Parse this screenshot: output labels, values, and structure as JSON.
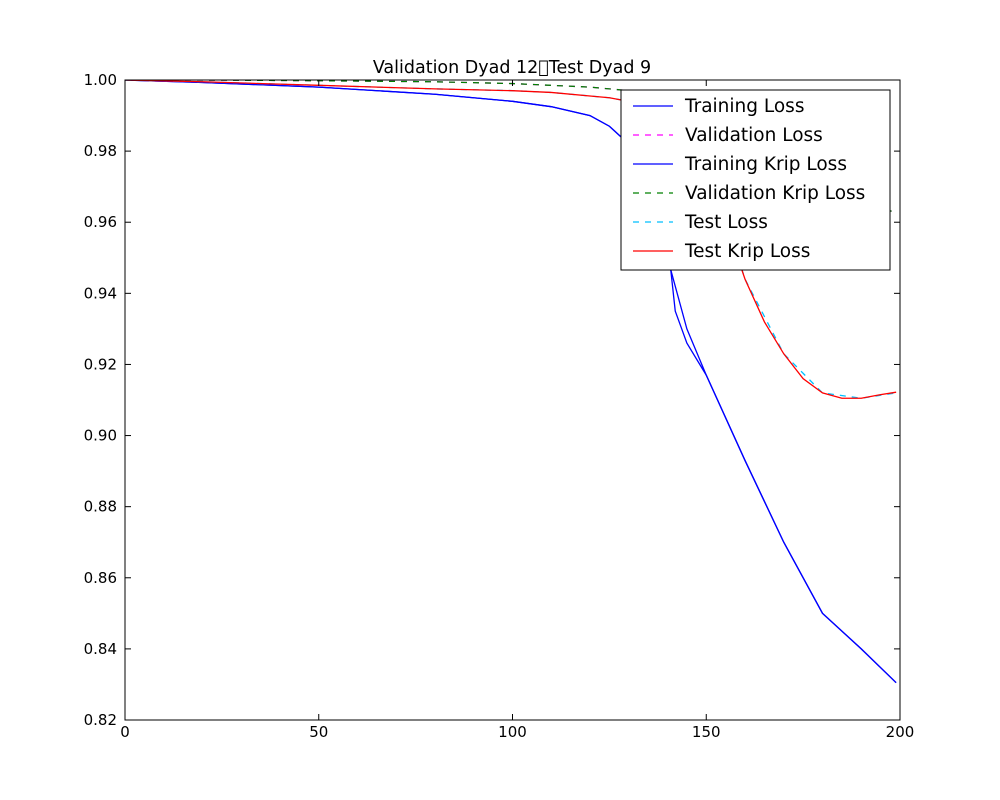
{
  "chart_data": {
    "type": "line",
    "title": "Validation Dyad 12\u0000Test Dyad 9",
    "xlabel": "",
    "ylabel": "",
    "xlim": [
      0,
      200
    ],
    "ylim": [
      0.82,
      1.0
    ],
    "xticks": [
      0,
      50,
      100,
      150,
      200
    ],
    "xtick_labels": [
      "0",
      "50",
      "100",
      "150",
      "200"
    ],
    "yticks": [
      0.82,
      0.84,
      0.86,
      0.88,
      0.9,
      0.92,
      0.94,
      0.96,
      0.98,
      1.0
    ],
    "ytick_labels": [
      "0.82",
      "0.84",
      "0.86",
      "0.88",
      "0.90",
      "0.92",
      "0.94",
      "0.96",
      "0.98",
      "1.00"
    ],
    "grid": false,
    "legend_position": "top-right",
    "series": [
      {
        "name": "Training Loss",
        "color": "#0000ff",
        "dash": "solid",
        "x": [
          0,
          20,
          50,
          80,
          100,
          110,
          120,
          125,
          130,
          135,
          140,
          145,
          150,
          160,
          170,
          180,
          190,
          199
        ],
        "y": [
          1.0,
          0.9993,
          0.998,
          0.996,
          0.994,
          0.9925,
          0.99,
          0.987,
          0.982,
          0.972,
          0.95,
          0.93,
          0.917,
          0.893,
          0.87,
          0.85,
          0.84,
          0.8305
        ]
      },
      {
        "name": "Validation Loss",
        "color": "#ff00ff",
        "dash": "dashed",
        "x": [
          0,
          20,
          50,
          80,
          100,
          110,
          120,
          125,
          130,
          135,
          140,
          145,
          150,
          160,
          170,
          180,
          190,
          199
        ],
        "y": [
          1.0,
          1.0,
          0.9998,
          0.9995,
          0.999,
          0.9985,
          0.998,
          0.9975,
          0.997,
          0.996,
          0.994,
          0.991,
          0.987,
          0.979,
          0.972,
          0.967,
          0.964,
          0.963
        ]
      },
      {
        "name": "Training Krip Loss",
        "color": "#0000ff",
        "dash": "solid",
        "x": [
          0,
          20,
          50,
          80,
          100,
          110,
          120,
          125,
          130,
          135,
          140,
          141,
          142,
          145,
          150,
          160,
          170,
          180,
          190,
          199
        ],
        "y": [
          1.0,
          0.9993,
          0.998,
          0.996,
          0.994,
          0.9925,
          0.99,
          0.987,
          0.982,
          0.972,
          0.955,
          0.945,
          0.935,
          0.926,
          0.917,
          0.893,
          0.87,
          0.85,
          0.84,
          0.8305
        ]
      },
      {
        "name": "Validation Krip Loss",
        "color": "#008000",
        "dash": "dashed",
        "x": [
          0,
          20,
          50,
          80,
          100,
          110,
          120,
          125,
          130,
          135,
          140,
          145,
          150,
          160,
          170,
          180,
          190,
          199
        ],
        "y": [
          1.0,
          1.0,
          0.9998,
          0.9995,
          0.999,
          0.9985,
          0.998,
          0.9975,
          0.997,
          0.996,
          0.994,
          0.991,
          0.987,
          0.979,
          0.972,
          0.967,
          0.964,
          0.963
        ]
      },
      {
        "name": "Test Loss",
        "color": "#00bfff",
        "dash": "dashed",
        "x": [
          0,
          20,
          50,
          80,
          100,
          110,
          120,
          125,
          130,
          135,
          140,
          145,
          150,
          160,
          170,
          180,
          190,
          199
        ],
        "y": [
          1.0,
          0.9995,
          0.9985,
          0.9975,
          0.997,
          0.9965,
          0.9955,
          0.995,
          0.994,
          0.9925,
          0.99,
          0.986,
          0.978,
          0.944,
          0.923,
          0.912,
          0.9105,
          0.912
        ]
      },
      {
        "name": "Test Krip Loss",
        "color": "#ff0000",
        "dash": "solid",
        "x": [
          0,
          20,
          50,
          80,
          100,
          110,
          120,
          125,
          130,
          135,
          140,
          145,
          150,
          155,
          160,
          165,
          170,
          175,
          180,
          185,
          190,
          195,
          199
        ],
        "y": [
          1.0,
          0.9995,
          0.9985,
          0.9975,
          0.997,
          0.9965,
          0.9955,
          0.995,
          0.994,
          0.9925,
          0.99,
          0.986,
          0.978,
          0.96,
          0.944,
          0.932,
          0.923,
          0.916,
          0.912,
          0.9105,
          0.9105,
          0.9115,
          0.9122
        ]
      }
    ]
  }
}
